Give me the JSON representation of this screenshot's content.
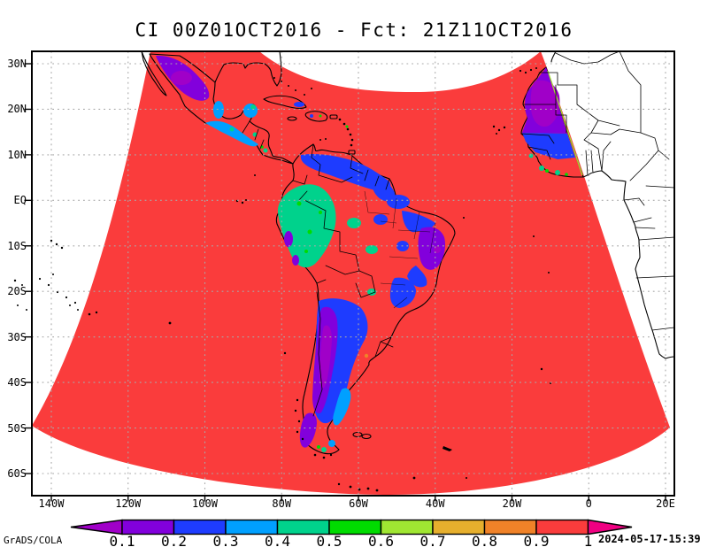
{
  "title": "CI 00Z01OCT2016 - Fct: 21Z11OCT2016",
  "axes": {
    "lat": [
      "30N",
      "20N",
      "10N",
      "EQ",
      "10S",
      "20S",
      "30S",
      "40S",
      "50S",
      "60S"
    ],
    "lon": [
      "140W",
      "120W",
      "100W",
      "80W",
      "60W",
      "40W",
      "20W",
      "0",
      "20E"
    ]
  },
  "colorbar": {
    "levels": [
      "0.1",
      "0.2",
      "0.3",
      "0.4",
      "0.5",
      "0.6",
      "0.7",
      "0.8",
      "0.9",
      "1"
    ],
    "colors": [
      "#A000C8",
      "#8200DC",
      "#1E3CFF",
      "#00A0FF",
      "#00D28C",
      "#00DC00",
      "#A0E632",
      "#E6AF2D",
      "#F08228",
      "#FA3C3C",
      "#F00082"
    ]
  },
  "footer": {
    "credit": "GrADS/COLA",
    "timestamp": "2024-05-17-15:39"
  },
  "chart_data": {
    "type": "heatmap",
    "title": "CI 00Z01OCT2016 - Fct: 21Z11OCT2016",
    "x_ticks": [
      "140W",
      "120W",
      "100W",
      "80W",
      "60W",
      "40W",
      "20W",
      "0",
      "20E"
    ],
    "y_ticks": [
      "30N",
      "20N",
      "10N",
      "EQ",
      "10S",
      "20S",
      "30S",
      "40S",
      "50S",
      "60S"
    ],
    "levels": [
      0.1,
      0.2,
      0.3,
      0.4,
      0.5,
      0.6,
      0.7,
      0.8,
      0.9,
      1
    ],
    "palette": [
      "#A000C8",
      "#8200DC",
      "#1E3CFF",
      "#00A0FF",
      "#00D28C",
      "#00DC00",
      "#A0E632",
      "#E6AF2D",
      "#F08228",
      "#FA3C3C",
      "#F00082"
    ],
    "legend_position": "bottom",
    "no_data_color": "#FFFFFF",
    "field_description": "Filled-contour CI field on a fan-shaped projection domain: values near 1 (red) over oceans; low values 0.1-0.5 (purple/blue/azure/teal) over Mexico, Central America, the Caribbean islands, South America and West Africa."
  }
}
